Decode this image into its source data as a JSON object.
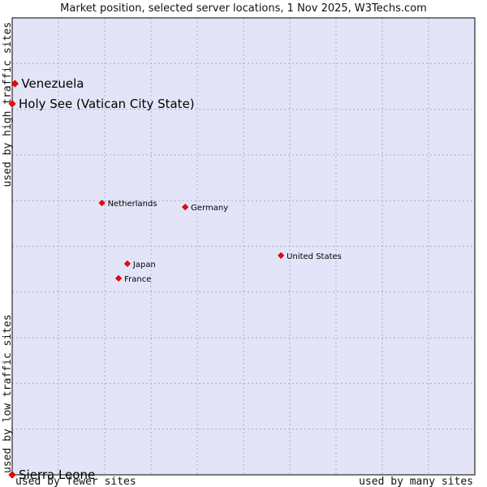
{
  "chart_data": {
    "type": "scatter",
    "title": "Market position, selected server locations, 1 Nov 2025, W3Techs.com",
    "xlabel_low": "used by fewer sites",
    "xlabel_high": "used by many sites",
    "ylabel_low": "used by low traffic sites",
    "ylabel_high": "used by high traffic sites",
    "xlim": [
      0,
      100
    ],
    "ylim": [
      0,
      100
    ],
    "grid": true,
    "colors": {
      "plot_bg": "#e4e4f8",
      "grid": "#aaaacc",
      "point": "#ff0000",
      "point_stroke": "#b00000"
    },
    "points": [
      {
        "label": "Venezuela",
        "x": 0.6,
        "y": 85.6,
        "size": "large"
      },
      {
        "label": "Holy See (Vatican City State)",
        "x": 0.0,
        "y": 81.2,
        "size": "large"
      },
      {
        "label": "Netherlands",
        "x": 19.4,
        "y": 59.5,
        "size": "small"
      },
      {
        "label": "Germany",
        "x": 37.4,
        "y": 58.6,
        "size": "small"
      },
      {
        "label": "United States",
        "x": 58.1,
        "y": 48.0,
        "size": "small"
      },
      {
        "label": "Japan",
        "x": 24.9,
        "y": 46.2,
        "size": "small"
      },
      {
        "label": "France",
        "x": 23.0,
        "y": 43.0,
        "size": "small"
      },
      {
        "label": "Sierra Leone",
        "x": 0.0,
        "y": 0.0,
        "size": "large"
      }
    ]
  }
}
